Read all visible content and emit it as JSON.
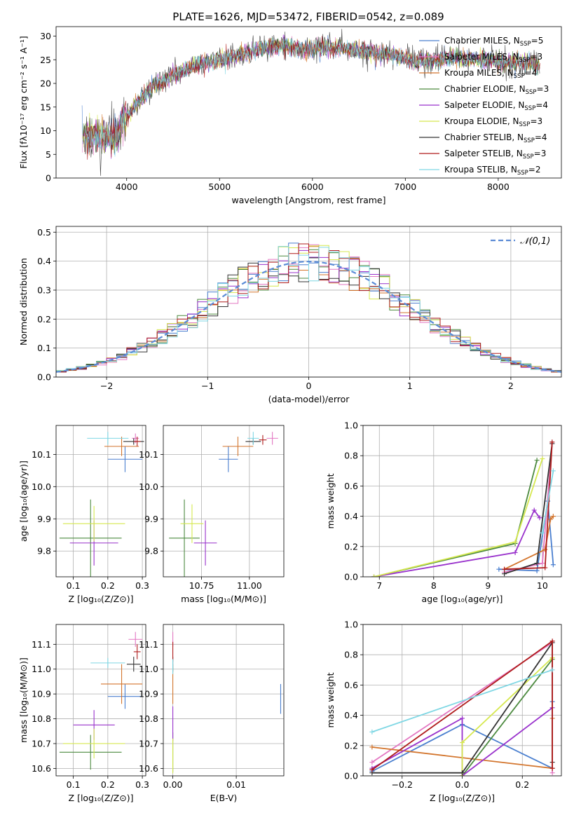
{
  "suptitle": "PLATE=1626, MJD=53472, FIBERID=0542, z=0.089",
  "chart_data": [
    {
      "id": "spectrum",
      "type": "line",
      "xlabel": "wavelength [Angstrom, rest frame]",
      "ylabel": "Flux [fλ10⁻¹⁷ erg cm⁻² s⁻¹ A⁻¹]",
      "xlim": [
        3240,
        8680
      ],
      "ylim": [
        0,
        32
      ],
      "xticks": [
        4000,
        5000,
        6000,
        7000,
        8000
      ],
      "yticks": [
        0,
        5,
        10,
        15,
        20,
        25,
        30
      ],
      "legend_loc": "upper right",
      "grid": false,
      "continuum": {
        "x": [
          3520,
          3700,
          3900,
          3950,
          4100,
          4300,
          4500,
          4700,
          4900,
          5100,
          5300,
          5500,
          5700,
          5900,
          6100,
          6300,
          6500,
          6700,
          6900,
          7100,
          7300,
          7500,
          7700,
          7900,
          8100,
          8300,
          8450
        ],
        "y": [
          8.5,
          9.0,
          8.5,
          12.0,
          15.5,
          19.5,
          21.5,
          23.5,
          24.5,
          25.5,
          26.5,
          27.5,
          28.0,
          27.0,
          27.5,
          27.5,
          27.0,
          26.5,
          26.0,
          24.5,
          25.0,
          25.5,
          25.0,
          25.0,
          24.5,
          24.5,
          23.5
        ]
      },
      "series": [
        {
          "name": "Chabrier MILES, N_SSP=5",
          "color": "#4a7fcf"
        },
        {
          "name": "Salpeter MILES, N_SSP=3",
          "color": "#e377c2"
        },
        {
          "name": "Kroupa MILES, N_SSP=4",
          "color": "#d3752d"
        },
        {
          "name": "Chabrier ELODIE, N_SSP=3",
          "color": "#4c8a3f"
        },
        {
          "name": "Salpeter ELODIE, N_SSP=4",
          "color": "#9932cc"
        },
        {
          "name": "Kroupa ELODIE, N_SSP=3",
          "color": "#d6e84f"
        },
        {
          "name": "Chabrier STELIB, N_SSP=4",
          "color": "#333333"
        },
        {
          "name": "Salpeter STELIB, N_SSP=3",
          "color": "#b01c1c"
        },
        {
          "name": "Kroupa STELIB, N_SSP=2",
          "color": "#7fd7e4"
        }
      ]
    },
    {
      "id": "residuals",
      "type": "histogram",
      "xlabel": "(data-model)/error",
      "ylabel": "Normed distribution",
      "xlim": [
        -2.5,
        2.5
      ],
      "ylim": [
        0,
        0.52
      ],
      "xticks": [
        -2,
        -1,
        0,
        1,
        2
      ],
      "yticks": [
        0.0,
        0.1,
        0.2,
        0.3,
        0.4,
        0.5
      ],
      "grid": true,
      "legend_loc": "upper right",
      "reference_curve": {
        "name": "𝒩(0,1)",
        "color": "#5b8bd6",
        "style": "dashed"
      },
      "bin_width": 0.1,
      "bin_start": -2.5
    },
    {
      "id": "age-vs-Z",
      "type": "scatter",
      "xlabel": "Z [log₁₀(Z/Z⊙)]",
      "ylabel": "age  [log₁₀(age/yr)]",
      "xlim": [
        0.05,
        0.31
      ],
      "ylim": [
        9.72,
        10.19
      ],
      "xticks": [
        0.1,
        0.2,
        0.3
      ],
      "yticks": [
        9.8,
        9.9,
        10.0,
        10.1
      ],
      "grid": true,
      "points": [
        {
          "x": 0.25,
          "y": 10.085,
          "xerr": 0.05,
          "yerr": 0.04,
          "color": "#4a7fcf"
        },
        {
          "x": 0.28,
          "y": 10.15,
          "xerr": 0.01,
          "yerr": 0.015,
          "color": "#e377c2"
        },
        {
          "x": 0.24,
          "y": 10.125,
          "xerr": 0.05,
          "yerr": 0.03,
          "color": "#d3752d"
        },
        {
          "x": 0.15,
          "y": 9.84,
          "xerr": 0.09,
          "yerr": 0.12,
          "color": "#4c8a3f"
        },
        {
          "x": 0.16,
          "y": 9.825,
          "xerr": 0.07,
          "yerr": 0.07,
          "color": "#9932cc"
        },
        {
          "x": 0.16,
          "y": 9.885,
          "xerr": 0.09,
          "yerr": 0.055,
          "color": "#d6e84f"
        },
        {
          "x": 0.275,
          "y": 10.14,
          "xerr": 0.03,
          "yerr": 0.01,
          "color": "#333333"
        },
        {
          "x": 0.285,
          "y": 10.14,
          "xerr": 0.01,
          "yerr": 0.015,
          "color": "#b01c1c"
        },
        {
          "x": 0.2,
          "y": 10.15,
          "xerr": 0.06,
          "yerr": 0.02,
          "color": "#7fd7e4"
        }
      ]
    },
    {
      "id": "age-vs-mass",
      "type": "scatter",
      "xlabel": "mass [log₁₀(M/M⊙)]",
      "xlim": [
        10.55,
        11.18
      ],
      "ylim": [
        9.72,
        10.19
      ],
      "xticks": [
        10.75,
        11.0
      ],
      "yticks": [
        9.8,
        9.9,
        10.0,
        10.1
      ],
      "grid": true,
      "points": [
        {
          "x": 10.89,
          "y": 10.085,
          "xerr": 0.05,
          "yerr": 0.04,
          "color": "#4a7fcf"
        },
        {
          "x": 11.12,
          "y": 10.15,
          "xerr": 0.03,
          "yerr": 0.02,
          "color": "#e377c2"
        },
        {
          "x": 10.94,
          "y": 10.125,
          "xerr": 0.08,
          "yerr": 0.03,
          "color": "#d3752d"
        },
        {
          "x": 10.66,
          "y": 9.84,
          "xerr": 0.08,
          "yerr": 0.12,
          "color": "#4c8a3f"
        },
        {
          "x": 10.77,
          "y": 9.825,
          "xerr": 0.06,
          "yerr": 0.07,
          "color": "#9932cc"
        },
        {
          "x": 10.7,
          "y": 9.885,
          "xerr": 0.06,
          "yerr": 0.06,
          "color": "#d6e84f"
        },
        {
          "x": 11.02,
          "y": 10.14,
          "xerr": 0.04,
          "yerr": 0.01,
          "color": "#333333"
        },
        {
          "x": 11.07,
          "y": 10.145,
          "xerr": 0.02,
          "yerr": 0.015,
          "color": "#b01c1c"
        },
        {
          "x": 11.02,
          "y": 10.15,
          "xerr": 0.03,
          "yerr": 0.02,
          "color": "#7fd7e4"
        }
      ]
    },
    {
      "id": "mass-weight-vs-age",
      "type": "line",
      "xlabel": "age  [log₁₀(age/yr)]",
      "ylabel": "mass weight",
      "xlim": [
        6.7,
        10.35
      ],
      "ylim": [
        0,
        1.0
      ],
      "xticks": [
        7,
        8,
        9,
        10
      ],
      "yticks": [
        0.0,
        0.2,
        0.4,
        0.6,
        0.8,
        1.0
      ],
      "grid": true,
      "series": [
        {
          "color": "#4a7fcf",
          "x": [
            9.2,
            9.9,
            10.1,
            10.2
          ],
          "y": [
            0.05,
            0.04,
            0.5,
            0.08
          ]
        },
        {
          "color": "#e377c2",
          "x": [
            9.3,
            10.0,
            10.18
          ],
          "y": [
            0.03,
            0.09,
            0.88
          ]
        },
        {
          "color": "#d3752d",
          "x": [
            9.3,
            10.05,
            10.15,
            10.2
          ],
          "y": [
            0.05,
            0.18,
            0.38,
            0.4
          ]
        },
        {
          "color": "#4c8a3f",
          "x": [
            6.9,
            9.5,
            9.9
          ],
          "y": [
            0.0,
            0.22,
            0.77
          ]
        },
        {
          "color": "#9932cc",
          "x": [
            6.9,
            9.5,
            9.85,
            9.95
          ],
          "y": [
            0.0,
            0.16,
            0.44,
            0.39
          ]
        },
        {
          "color": "#d6e84f",
          "x": [
            6.9,
            9.5,
            10.0
          ],
          "y": [
            0.0,
            0.23,
            0.78
          ]
        },
        {
          "color": "#333333",
          "x": [
            9.3,
            9.9,
            10.18
          ],
          "y": [
            0.02,
            0.09,
            0.88
          ]
        },
        {
          "color": "#b01c1c",
          "x": [
            9.3,
            10.05,
            10.18
          ],
          "y": [
            0.05,
            0.06,
            0.89
          ]
        },
        {
          "color": "#7fd7e4",
          "x": [
            10.0,
            10.2
          ],
          "y": [
            0.29,
            0.7
          ]
        }
      ]
    },
    {
      "id": "mass-vs-Z",
      "type": "scatter",
      "xlabel": "Z [log₁₀(Z/Z⊙)]",
      "ylabel": "mass [log₁₀(M/M⊙)]",
      "xlim": [
        0.05,
        0.31
      ],
      "ylim": [
        10.57,
        11.18
      ],
      "xticks": [
        0.1,
        0.2,
        0.3
      ],
      "yticks": [
        10.6,
        10.7,
        10.8,
        10.9,
        11.0,
        11.1
      ],
      "grid": true,
      "points": [
        {
          "x": 0.25,
          "y": 10.89,
          "xerr": 0.05,
          "yerr": 0.05,
          "color": "#4a7fcf"
        },
        {
          "x": 0.28,
          "y": 11.12,
          "xerr": 0.02,
          "yerr": 0.03,
          "color": "#e377c2"
        },
        {
          "x": 0.24,
          "y": 10.94,
          "xerr": 0.06,
          "yerr": 0.08,
          "color": "#d3752d"
        },
        {
          "x": 0.15,
          "y": 10.665,
          "xerr": 0.09,
          "yerr": 0.07,
          "color": "#4c8a3f"
        },
        {
          "x": 0.16,
          "y": 10.775,
          "xerr": 0.06,
          "yerr": 0.06,
          "color": "#9932cc"
        },
        {
          "x": 0.16,
          "y": 10.7,
          "xerr": 0.09,
          "yerr": 0.06,
          "color": "#d6e84f"
        },
        {
          "x": 0.275,
          "y": 11.02,
          "xerr": 0.02,
          "yerr": 0.03,
          "color": "#333333"
        },
        {
          "x": 0.285,
          "y": 11.07,
          "xerr": 0.01,
          "yerr": 0.03,
          "color": "#b01c1c"
        },
        {
          "x": 0.2,
          "y": 11.025,
          "xerr": 0.05,
          "yerr": 0.02,
          "color": "#7fd7e4"
        }
      ]
    },
    {
      "id": "mass-vs-ebv",
      "type": "scatter",
      "xlabel": "E(B-V)",
      "xlim": [
        -0.0015,
        0.0175
      ],
      "ylim": [
        10.57,
        11.18
      ],
      "xticks": [
        0.0,
        0.01
      ],
      "yticks": [
        10.6,
        10.7,
        10.8,
        10.9,
        11.0,
        11.1
      ],
      "grid": true,
      "points": [
        {
          "x": 0.017,
          "y": 10.88,
          "yerr": 0.06,
          "color": "#4a7fcf"
        },
        {
          "x": 0.0,
          "y": 11.12,
          "yerr": 0.03,
          "color": "#e377c2"
        },
        {
          "x": 0.0,
          "y": 10.94,
          "yerr": 0.08,
          "color": "#d3752d"
        },
        {
          "x": 0.0,
          "y": 10.665,
          "yerr": 0.08,
          "color": "#4c8a3f"
        },
        {
          "x": 0.0,
          "y": 10.78,
          "yerr": 0.07,
          "color": "#9932cc"
        },
        {
          "x": 0.0,
          "y": 10.65,
          "yerr": 0.07,
          "color": "#d6e84f"
        },
        {
          "x": 0.0,
          "y": 11.02,
          "yerr": 0.03,
          "color": "#333333"
        },
        {
          "x": 0.0,
          "y": 11.07,
          "yerr": 0.04,
          "color": "#b01c1c"
        },
        {
          "x": 0.0,
          "y": 11.01,
          "yerr": 0.03,
          "color": "#7fd7e4"
        }
      ]
    },
    {
      "id": "mass-weight-vs-Z",
      "type": "line",
      "xlabel": "Z [log₁₀(Z/Z⊙)]",
      "ylabel": "mass weight",
      "xlim": [
        -0.33,
        0.33
      ],
      "ylim": [
        0,
        1.0
      ],
      "xticks": [
        -0.2,
        0.0,
        0.2
      ],
      "yticks": [
        0.0,
        0.2,
        0.4,
        0.6,
        0.8,
        1.0
      ],
      "grid": true,
      "series": [
        {
          "color": "#4a7fcf",
          "x": [
            -0.3,
            0.0,
            0.3,
            0.3
          ],
          "y": [
            0.03,
            0.34,
            0.05,
            0.49
          ]
        },
        {
          "color": "#e377c2",
          "x": [
            -0.3,
            0.3,
            0.3
          ],
          "y": [
            0.09,
            0.88,
            0.02
          ]
        },
        {
          "color": "#d3752d",
          "x": [
            -0.3,
            0.3,
            0.3
          ],
          "y": [
            0.19,
            0.05,
            0.38
          ]
        },
        {
          "color": "#4c8a3f",
          "x": [
            0.0,
            0.3
          ],
          "y": [
            0.0,
            0.77
          ]
        },
        {
          "color": "#9932cc",
          "x": [
            -0.3,
            0.0,
            0.0,
            0.3
          ],
          "y": [
            0.05,
            0.38,
            0.0,
            0.45
          ]
        },
        {
          "color": "#d6e84f",
          "x": [
            0.0,
            0.0,
            0.3
          ],
          "y": [
            0.0,
            0.22,
            0.78
          ]
        },
        {
          "color": "#333333",
          "x": [
            -0.3,
            0.0,
            0.3,
            0.3
          ],
          "y": [
            0.02,
            0.02,
            0.88,
            0.09
          ]
        },
        {
          "color": "#b01c1c",
          "x": [
            -0.3,
            0.3,
            0.3
          ],
          "y": [
            0.04,
            0.89,
            0.05
          ]
        },
        {
          "color": "#7fd7e4",
          "x": [
            -0.3,
            0.3
          ],
          "y": [
            0.29,
            0.7
          ]
        }
      ]
    }
  ]
}
